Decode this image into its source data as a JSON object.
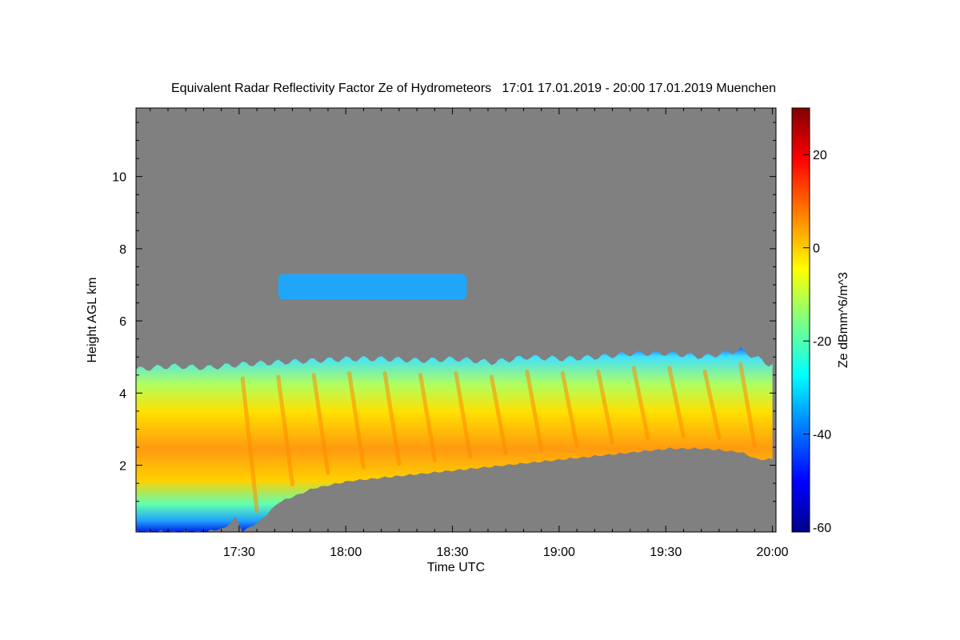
{
  "chart_data": {
    "type": "heatmap",
    "title": "Equivalent Radar Reflectivity Factor Ze of Hydrometeors   17:01 17.01.2019 - 20:00 17.01.2019 Muenchen",
    "xlabel": "Time UTC",
    "ylabel": "Height AGL km",
    "colorbar_label": "Ze dBmm^6/m^3",
    "x_range": [
      "17:01",
      "20:01"
    ],
    "y_range_km": [
      0.15,
      11.9
    ],
    "colorbar_range": [
      -61,
      30
    ],
    "x_ticks": [
      "17:30",
      "18:00",
      "18:30",
      "19:00",
      "19:30",
      "20:00"
    ],
    "x_tick_minutes": [
      29,
      59,
      89,
      119,
      149,
      179
    ],
    "y_ticks": [
      2,
      4,
      6,
      8,
      10
    ],
    "y_tick_labels": [
      "2",
      "4",
      "6",
      "8",
      "10"
    ],
    "colorbar_ticks": [
      -60,
      -40,
      -20,
      0,
      20
    ],
    "colorbar_tick_labels": [
      "-60",
      "-40",
      "-20",
      "0",
      "20"
    ],
    "background_color": "#808080",
    "colormap": [
      "#00008b",
      "#0000ff",
      "#0080ff",
      "#00ffff",
      "#80ff80",
      "#ffff00",
      "#ff8000",
      "#ff0000",
      "#800000"
    ],
    "cloud_top_km": [
      [
        0,
        4.65
      ],
      [
        10,
        4.75
      ],
      [
        20,
        4.7
      ],
      [
        30,
        4.8
      ],
      [
        40,
        4.85
      ],
      [
        50,
        4.9
      ],
      [
        60,
        4.95
      ],
      [
        70,
        4.95
      ],
      [
        80,
        4.9
      ],
      [
        90,
        4.95
      ],
      [
        100,
        4.85
      ],
      [
        110,
        5.0
      ],
      [
        120,
        4.95
      ],
      [
        130,
        5.0
      ],
      [
        140,
        5.1
      ],
      [
        150,
        5.1
      ],
      [
        160,
        5.0
      ],
      [
        170,
        5.2
      ],
      [
        178,
        4.8
      ]
    ],
    "cloud_base_km": [
      [
        0,
        0.2
      ],
      [
        20,
        0.2
      ],
      [
        25,
        0.3
      ],
      [
        28,
        0.6
      ],
      [
        30,
        0.2
      ],
      [
        35,
        0.5
      ],
      [
        40,
        1.0
      ],
      [
        50,
        1.4
      ],
      [
        60,
        1.6
      ],
      [
        70,
        1.7
      ],
      [
        80,
        1.8
      ],
      [
        90,
        1.9
      ],
      [
        100,
        2.0
      ],
      [
        110,
        2.1
      ],
      [
        120,
        2.2
      ],
      [
        130,
        2.3
      ],
      [
        140,
        2.4
      ],
      [
        150,
        2.5
      ],
      [
        160,
        2.5
      ],
      [
        170,
        2.4
      ],
      [
        175,
        2.2
      ],
      [
        178,
        2.2
      ]
    ],
    "high_cloud_layer": {
      "start_min": 40,
      "end_min": 93,
      "bottom_km": 6.6,
      "top_km": 7.3,
      "ze_dbz": -32
    }
  }
}
